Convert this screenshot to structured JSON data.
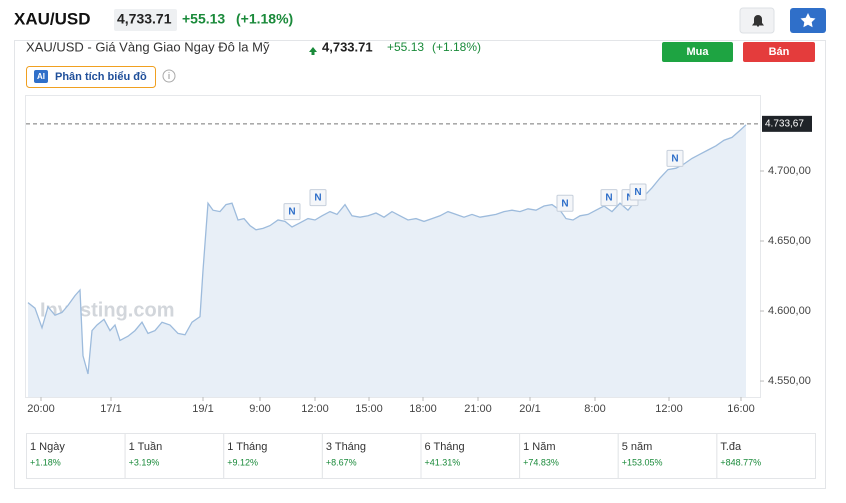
{
  "header": {
    "symbol": "XAU/USD",
    "price": "4,733.71",
    "change": "+55.13",
    "change_pct": "(+1.18%)"
  },
  "chart_header": {
    "title": "XAU/USD - Giá Vàng Giao Ngay Đô la Mỹ",
    "price": "4,733.71",
    "change": "+55.13",
    "change_pct": "(+1.18%)",
    "buy": "Mua",
    "sell": "Bán",
    "ai_badge": "AI",
    "analysis": "Phân tích biểu đồ"
  },
  "chart_data": {
    "type": "area",
    "color": "#9dbbdc",
    "fill": "#e8eff7",
    "watermark": "Investing.com",
    "x": [
      0,
      7,
      14,
      20,
      27,
      34,
      40,
      47,
      52,
      55,
      60,
      64,
      69,
      76,
      82,
      87,
      92,
      100,
      107,
      114,
      120,
      127,
      134,
      142,
      150,
      157,
      164,
      172,
      175,
      180,
      185,
      192,
      198,
      204,
      210,
      216,
      222,
      228,
      235,
      242,
      250,
      257,
      264,
      272,
      280,
      287,
      294,
      302,
      309,
      317,
      324,
      332,
      340,
      348,
      356,
      364,
      372,
      380,
      388,
      396,
      404,
      412,
      420,
      428,
      436,
      444,
      452,
      460,
      468,
      476,
      484,
      492,
      500,
      508,
      516,
      524,
      532,
      538,
      545,
      552,
      560,
      568,
      576,
      584,
      592,
      600,
      608,
      616,
      624,
      632,
      640,
      648,
      656,
      664,
      672,
      680,
      688,
      696,
      704,
      712,
      718
    ],
    "values": [
      4606,
      4602,
      4588,
      4603,
      4597,
      4599,
      4604,
      4611,
      4615,
      4568,
      4555,
      4586,
      4590,
      4594,
      4586,
      4590,
      4579,
      4582,
      4586,
      4592,
      4584,
      4586,
      4592,
      4590,
      4584,
      4583,
      4592,
      4596,
      4629,
      4677,
      4672,
      4671,
      4676,
      4677,
      4665,
      4666,
      4661,
      4658,
      4659,
      4661,
      4665,
      4664,
      4660,
      4663,
      4666,
      4665,
      4668,
      4671,
      4669,
      4676,
      4668,
      4667,
      4668,
      4670,
      4667,
      4671,
      4668,
      4665,
      4666,
      4664,
      4666,
      4668,
      4671,
      4669,
      4667,
      4669,
      4667,
      4668,
      4669,
      4671,
      4672,
      4671,
      4673,
      4672,
      4675,
      4676,
      4672,
      4666,
      4665,
      4668,
      4669,
      4672,
      4675,
      4671,
      4677,
      4672,
      4679,
      4682,
      4688,
      4695,
      4701,
      4702,
      4705,
      4709,
      4712,
      4715,
      4718,
      4722,
      4724,
      4729,
      4733
    ],
    "xlim": [
      0,
      720
    ],
    "xticks": [
      {
        "value": 13,
        "label": "20:00"
      },
      {
        "value": 83,
        "label": "17/1"
      },
      {
        "value": 175,
        "label": "19/1"
      },
      {
        "value": 232,
        "label": "9:00"
      },
      {
        "value": 287,
        "label": "12:00"
      },
      {
        "value": 341,
        "label": "15:00"
      },
      {
        "value": 395,
        "label": "18:00"
      },
      {
        "value": 450,
        "label": "21:00"
      },
      {
        "value": 502,
        "label": "20/1"
      },
      {
        "value": 567,
        "label": "8:00"
      },
      {
        "value": 641,
        "label": "12:00"
      },
      {
        "value": 713,
        "label": "16:00"
      }
    ],
    "ylim": [
      4538.6,
      4750.7
    ],
    "yticks": [
      {
        "value": 4550,
        "label": "4.550,00"
      },
      {
        "value": 4600,
        "label": "4.600,00"
      },
      {
        "value": 4650,
        "label": "4.650,00"
      },
      {
        "value": 4700,
        "label": "4.700,00"
      }
    ],
    "last_value": {
      "value": 4733.67,
      "label": "4.733,67"
    },
    "annotations": [
      {
        "text": "N",
        "x": 264,
        "y": 4671
      },
      {
        "text": "N",
        "x": 290,
        "y": 4681
      },
      {
        "text": "N",
        "x": 537,
        "y": 4677
      },
      {
        "text": "N",
        "x": 581,
        "y": 4681
      },
      {
        "text": "N",
        "x": 602,
        "y": 4681
      },
      {
        "text": "N",
        "x": 610,
        "y": 4685
      },
      {
        "text": "N",
        "x": 647,
        "y": 4709
      }
    ]
  },
  "performance": [
    {
      "period": "1 Ngày",
      "change": "+1.18%"
    },
    {
      "period": "1 Tuần",
      "change": "+3.19%"
    },
    {
      "period": "1 Tháng",
      "change": "+9.12%"
    },
    {
      "period": "3 Tháng",
      "change": "+8.67%"
    },
    {
      "period": "6 Tháng",
      "change": "+41.31%"
    },
    {
      "period": "1 Năm",
      "change": "+74.83%"
    },
    {
      "period": "5 năm",
      "change": "+153.05%"
    },
    {
      "period": "T.đa",
      "change": "+848.77%"
    }
  ]
}
